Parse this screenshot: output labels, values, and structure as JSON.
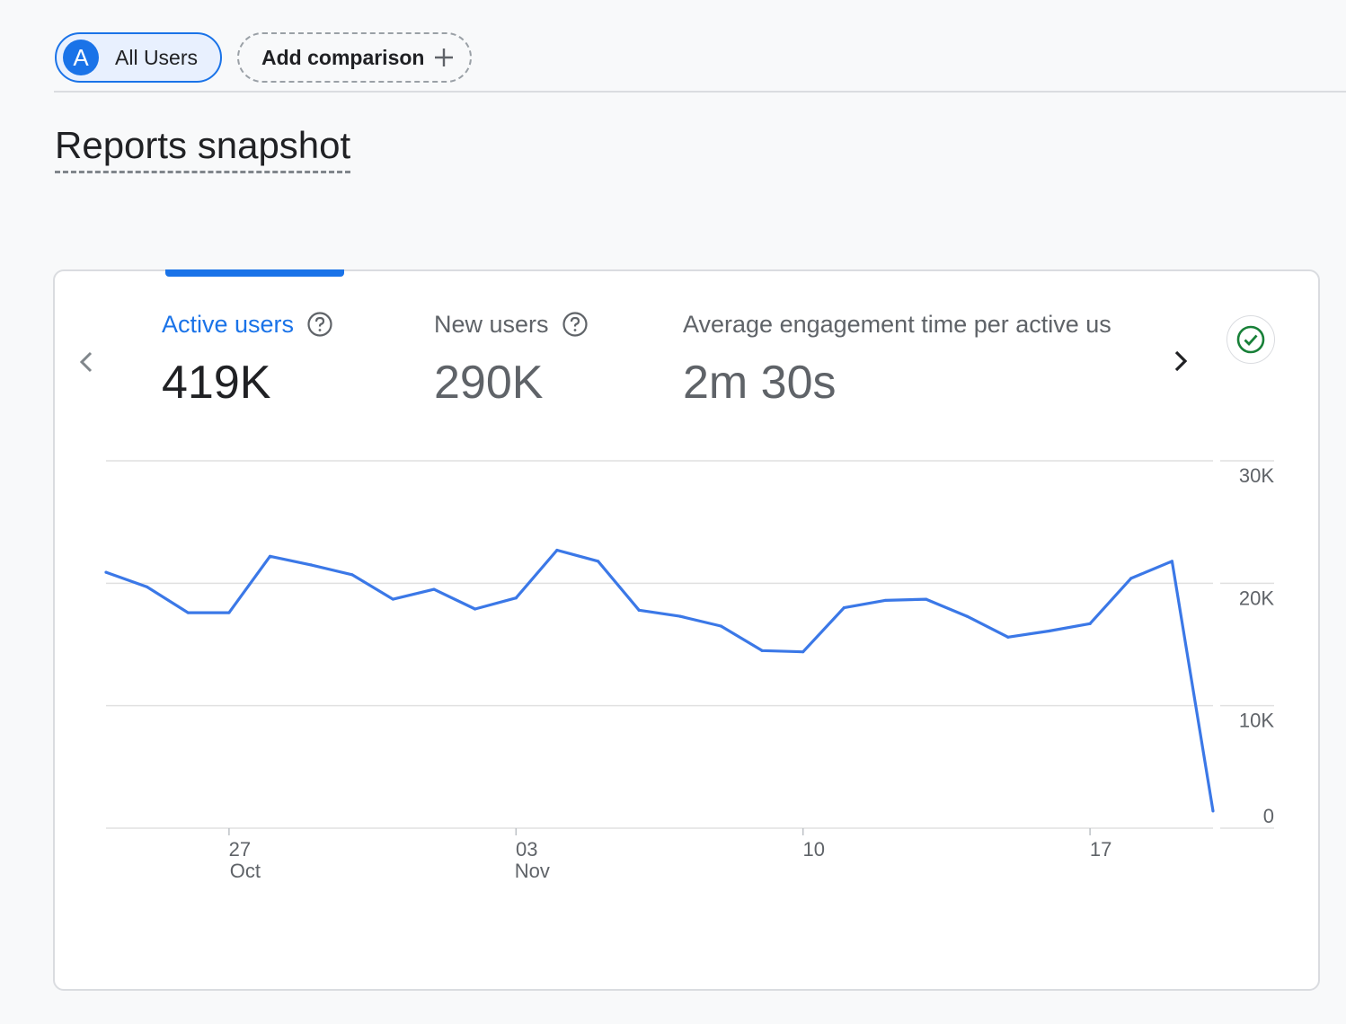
{
  "comparison_bar": {
    "segment_avatar": "A",
    "segment_label": "All Users",
    "add_label": "Add comparison"
  },
  "section_title": "Reports snapshot",
  "metrics": [
    {
      "label": "Active users",
      "value": "419K"
    },
    {
      "label": "New users",
      "value": "290K"
    },
    {
      "label": "Average engagement time per active us",
      "value": "2m 30s"
    }
  ],
  "icons": {
    "help": "help-circle-icon",
    "prev": "chevron-left-icon",
    "next": "chevron-right-icon",
    "check": "check-circle-icon",
    "add": "plus-icon"
  },
  "colors": {
    "accent": "#1a73e8",
    "line": "#3b78e7",
    "check": "#188038"
  },
  "chart_data": {
    "type": "line",
    "title": "",
    "xlabel": "",
    "ylabel": "",
    "ylim": [
      0,
      30000
    ],
    "y_ticks": [
      {
        "value": 30000,
        "label": "30K"
      },
      {
        "value": 20000,
        "label": "20K"
      },
      {
        "value": 10000,
        "label": "10K"
      },
      {
        "value": 0,
        "label": "0"
      }
    ],
    "x_ticks": [
      {
        "date": "2024-10-27",
        "day": "27",
        "month": "Oct"
      },
      {
        "date": "2024-11-03",
        "day": "03",
        "month": "Nov"
      },
      {
        "date": "2024-11-10",
        "day": "10",
        "month": ""
      },
      {
        "date": "2024-11-17",
        "day": "17",
        "month": ""
      }
    ],
    "grid": true,
    "series": [
      {
        "x": [
          "2024-10-24",
          "2024-10-25",
          "2024-10-26",
          "2024-10-27",
          "2024-10-28",
          "2024-10-29",
          "2024-10-30",
          "2024-10-31",
          "2024-11-01",
          "2024-11-02",
          "2024-11-03",
          "2024-11-04",
          "2024-11-05",
          "2024-11-06",
          "2024-11-07",
          "2024-11-08",
          "2024-11-09",
          "2024-11-10",
          "2024-11-11",
          "2024-11-12",
          "2024-11-13",
          "2024-11-14",
          "2024-11-15",
          "2024-11-16",
          "2024-11-17",
          "2024-11-18",
          "2024-11-19",
          "2024-11-20"
        ],
        "values": [
          20900,
          19700,
          17600,
          17600,
          22200,
          21500,
          20700,
          18700,
          19500,
          17900,
          18800,
          22700,
          21800,
          17800,
          17300,
          16500,
          14500,
          14400,
          18000,
          18600,
          18700,
          17300,
          15600,
          16100,
          16700,
          20400,
          21800,
          1400
        ]
      }
    ]
  }
}
